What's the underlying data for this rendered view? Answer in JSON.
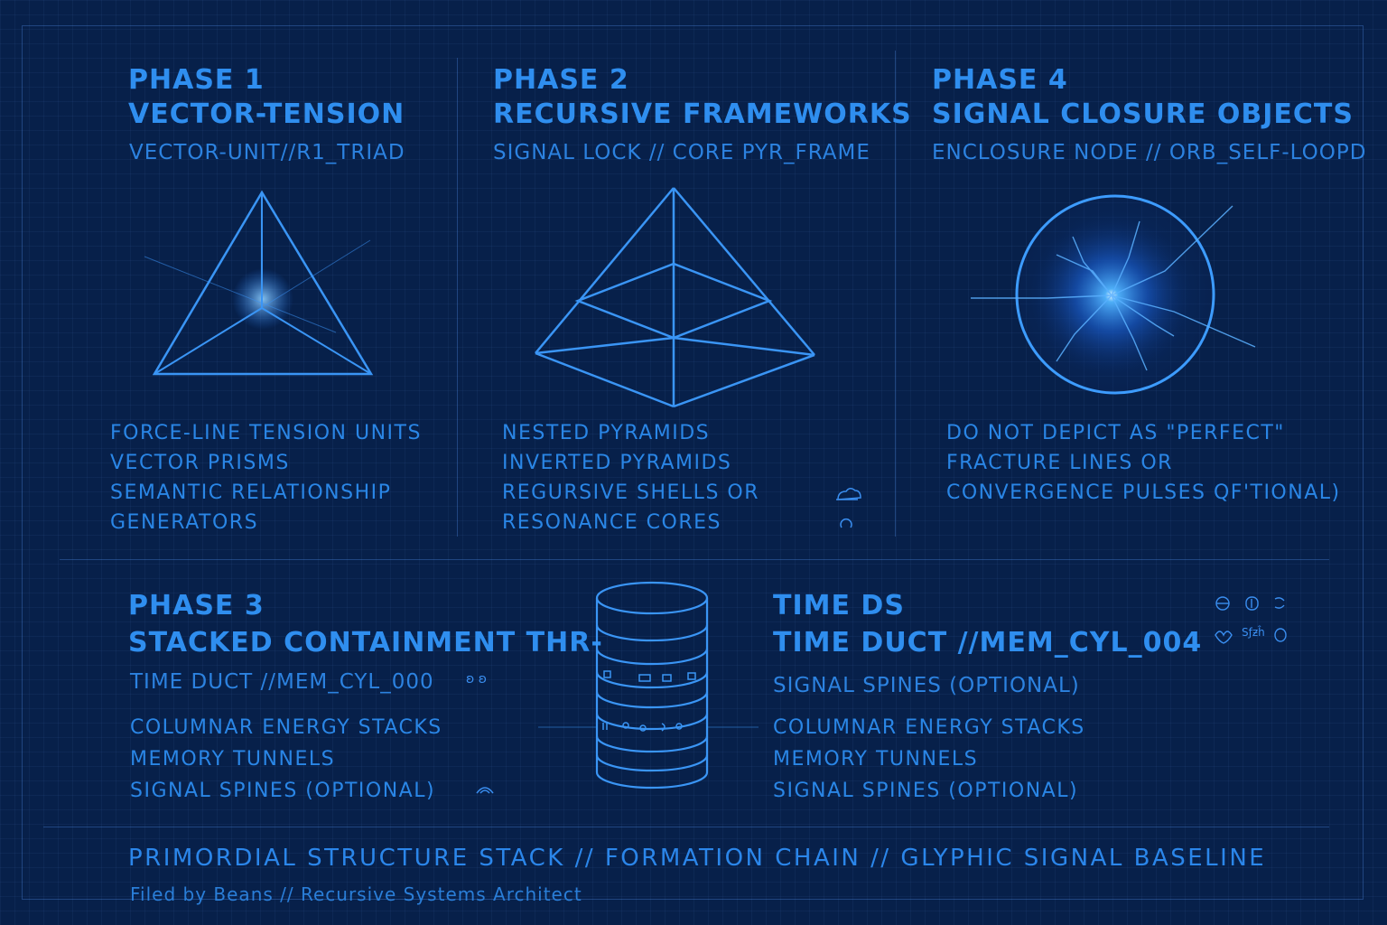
{
  "phase1": {
    "heading": "PHASE 1",
    "title": "VECTOR-TENSION",
    "subtitle": "VECTOR-UNIT//R1_TRIAD",
    "items": [
      "FORCE-LINE TENSION UNITS",
      "VECTOR PRISMS",
      "SEMANTIC RELATIONSHIP",
      "GENERATORS"
    ]
  },
  "phase2": {
    "heading": "PHASE 2",
    "title": "RECURSIVE FRAMEWORKS",
    "subtitle": "SIGNAL LOCK // CORE PYR_FRAME",
    "items": [
      "NESTED PYRAMIDS",
      "INVERTED PYRAMIDS",
      "REGURSIVE SHELLS OR",
      "RESONANCE CORES"
    ]
  },
  "phase4": {
    "heading": "PHASE 4",
    "title": "SIGNAL CLOSURE OBJECTS",
    "subtitle": "ENCLOSURE NODE // ORB_SELF-LOOPD",
    "items": [
      "DO NOT DEPICT AS \"PERFECT\"",
      "FRACTURE LINES OR",
      "CONVERGENCE PULSES QF'TIONAL)"
    ]
  },
  "phase3": {
    "heading": "PHASE 3",
    "title": "STACKED CONTAINMENT THR-",
    "subtitle": "TIME DUCT //MEM_CYL_000",
    "items": [
      "COLUMNAR ENERGY STACKS",
      "MEMORY TUNNELS",
      "SIGNAL SPINES (OPTIONAL)"
    ]
  },
  "timeds": {
    "heading": "TIME DS",
    "title": "TIME DUCT //MEM_CYL_004",
    "subtitle": "SIGNAL SPINES (OPTIONAL)",
    "items": [
      "COLUMNAR ENERGY STACKS",
      "MEMORY TUNNELS",
      "SIGNAL SPINES (OPTIONAL)"
    ]
  },
  "footer": {
    "title": "PRIMORDIAL STRUCTURE STACK // FORMATION CHAIN // GLYPHIC SIGNAL BASELINE",
    "credit": "Filed by Beans // Recursive Systems Architect"
  },
  "glyphs": {
    "phase3_subtitle_mark": "ʚ ʚ",
    "sfzh": "Sƒƶĥ"
  },
  "colors": {
    "background": "#07204a",
    "accent": "#2f8eef",
    "glow": "#6ab8ff"
  }
}
